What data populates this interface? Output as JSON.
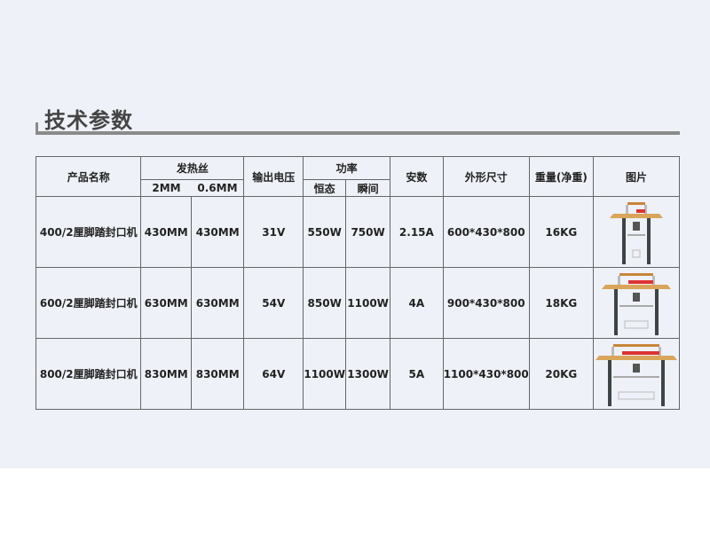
{
  "title": "技术参数",
  "headers": {
    "name": "产品名称",
    "wire": "发热丝",
    "wire_2mm": "2MM",
    "wire_06mm": "0.6MM",
    "voltage": "输出电压",
    "power": "功率",
    "power_steady": "恒态",
    "power_instant": "瞬间",
    "current": "安数",
    "size": "外形尺寸",
    "weight": "重量(净重)",
    "image": "图片"
  },
  "rows": [
    {
      "name": "400/2厘脚踏封口机",
      "w2": "430MM",
      "w06": "430MM",
      "voltage": "31V",
      "steady": "550W",
      "instant": "750W",
      "current": "2.15A",
      "size": "600*430*800",
      "weight": "16KG",
      "image": "foot-sealer-machine"
    },
    {
      "name": "600/2厘脚踏封口机",
      "w2": "630MM",
      "w06": "630MM",
      "voltage": "54V",
      "steady": "850W",
      "instant": "1100W",
      "current": "4A",
      "size": "900*430*800",
      "weight": "18KG",
      "image": "foot-sealer-machine"
    },
    {
      "name": "800/2厘脚踏封口机",
      "w2": "830MM",
      "w06": "830MM",
      "voltage": "64V",
      "steady": "1100W",
      "instant": "1300W",
      "current": "5A",
      "size": "1100*430*800",
      "weight": "20KG",
      "image": "foot-sealer-machine"
    }
  ],
  "colors": {
    "background": "#eef1f8",
    "table_top": "#d9a55a",
    "legs": "#3d4446"
  }
}
